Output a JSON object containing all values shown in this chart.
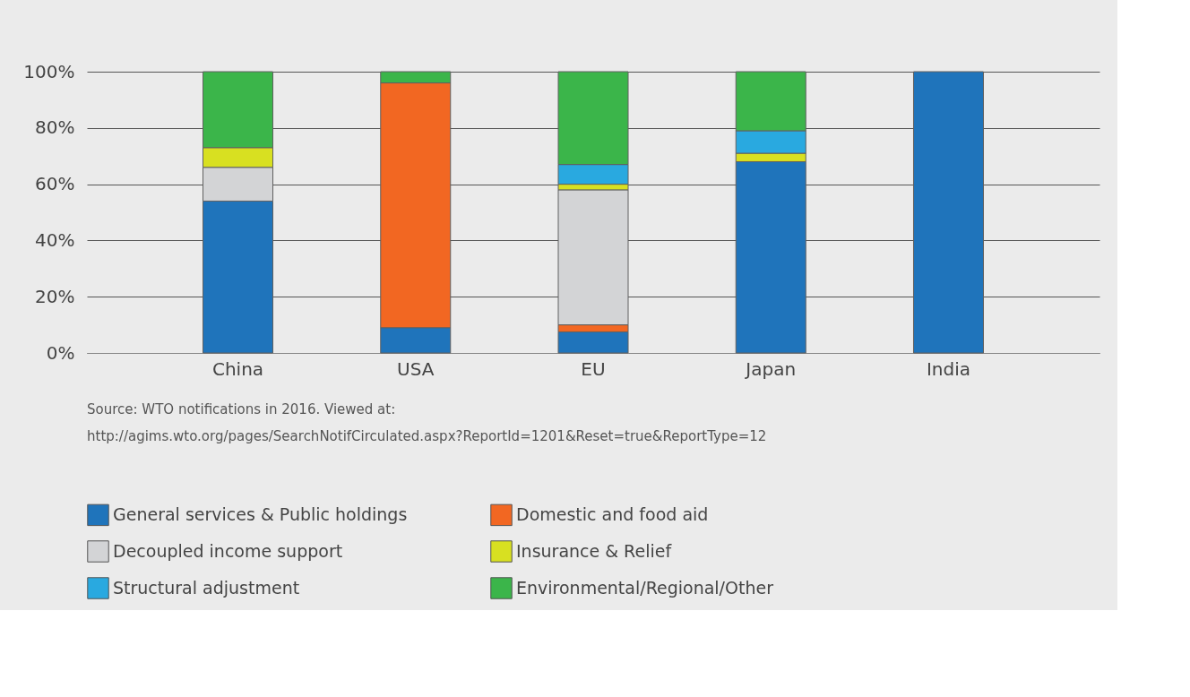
{
  "chart_data": {
    "type": "bar",
    "stacked": true,
    "categories": [
      "China",
      "USA",
      "EU",
      "Japan",
      "India"
    ],
    "series": [
      {
        "name": "General services & Public holdings",
        "color": "#1f74bb",
        "values": [
          54,
          9,
          7.5,
          68,
          100
        ]
      },
      {
        "name": "Domestic and food aid",
        "color": "#f26722",
        "values": [
          null,
          87,
          2.5,
          null,
          null
        ]
      },
      {
        "name": "Decoupled income support",
        "color": "#d3d4d6",
        "values": [
          12,
          null,
          48,
          null,
          null
        ]
      },
      {
        "name": "Insurance & Relief",
        "color": "#d8e021",
        "values": [
          7,
          null,
          2,
          3,
          null
        ]
      },
      {
        "name": "Structural adjustment",
        "color": "#29a9e0",
        "values": [
          null,
          null,
          7,
          8,
          null
        ]
      },
      {
        "name": "Environmental/Regional/Other",
        "color": "#3bb54a",
        "values": [
          27,
          4,
          33,
          21,
          null
        ]
      }
    ],
    "ylim": [
      0,
      100
    ],
    "yticks": [
      {
        "value": 0,
        "label": "0%"
      },
      {
        "value": 20,
        "label": "20%"
      },
      {
        "value": 40,
        "label": "40%"
      },
      {
        "value": 60,
        "label": "60%"
      },
      {
        "value": 80,
        "label": "80%"
      },
      {
        "value": 100,
        "label": "100%"
      }
    ],
    "grid": "y",
    "legend": "bottom",
    "annotations": [
      "Source: WTO notifications in 2016. Viewed at:",
      "http://agims.wto.org/pages/SearchNotifCirculated.aspx?ReportId=1201&Reset=true&ReportType=12"
    ]
  }
}
